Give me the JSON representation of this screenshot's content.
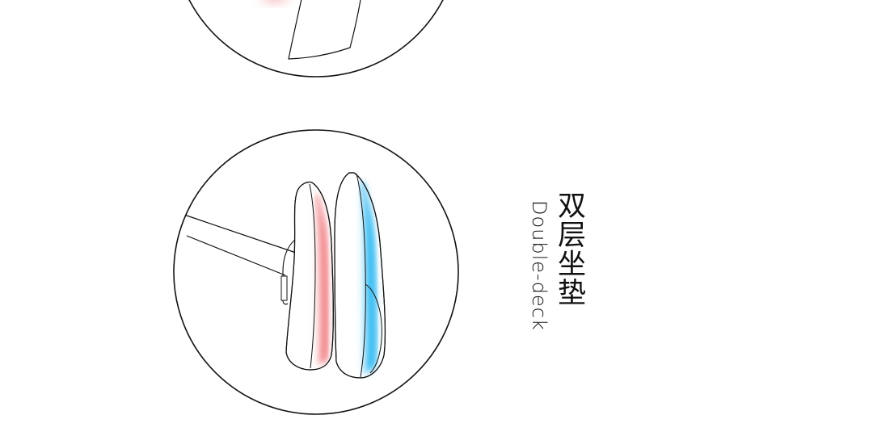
{
  "caption": {
    "chinese": "双层坐垫",
    "english": "Double-deck"
  },
  "colors": {
    "outline": "#111111",
    "front_cushion_glow": "#f4767a",
    "rear_cushion_glow": "#17b7f5",
    "background": "#ffffff"
  }
}
